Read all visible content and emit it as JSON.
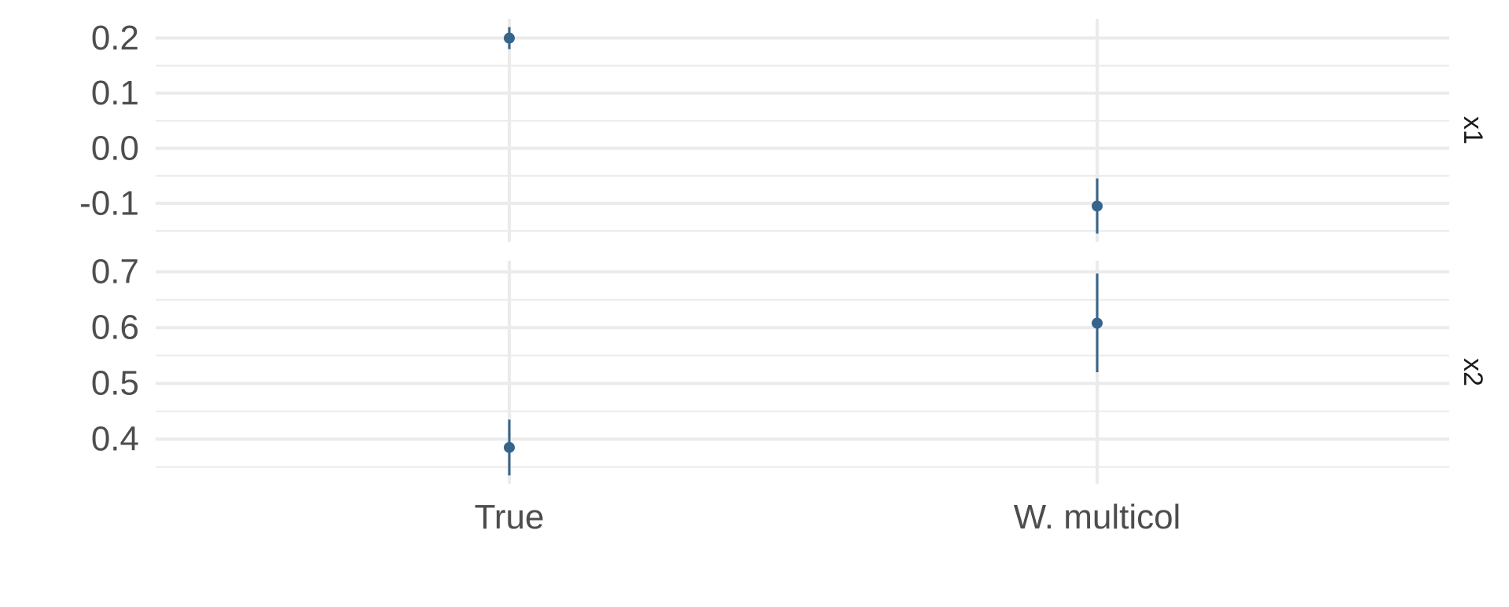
{
  "chart_data": {
    "type": "scatter",
    "subtype": "pointrange",
    "categories": [
      "True",
      "W. multicol"
    ],
    "facets": [
      {
        "label": "x1",
        "ylim": [
          -0.17,
          0.235
        ],
        "yticks": [
          -0.1,
          0.0,
          0.1,
          0.2
        ],
        "ytick_labels": [
          "-0.1",
          "0.0",
          "0.1",
          "0.2"
        ],
        "points": [
          {
            "category": "True",
            "y": 0.2,
            "ymin": 0.18,
            "ymax": 0.22
          },
          {
            "category": "W. multicol",
            "y": -0.105,
            "ymin": -0.155,
            "ymax": -0.055
          }
        ]
      },
      {
        "label": "x2",
        "ylim": [
          0.32,
          0.72
        ],
        "yticks": [
          0.4,
          0.5,
          0.6,
          0.7
        ],
        "ytick_labels": [
          "0.4",
          "0.5",
          "0.6",
          "0.7"
        ],
        "points": [
          {
            "category": "True",
            "y": 0.385,
            "ymin": 0.335,
            "ymax": 0.435
          },
          {
            "category": "W. multicol",
            "y": 0.608,
            "ymin": 0.52,
            "ymax": 0.697
          }
        ]
      }
    ],
    "color": "#36648b",
    "grid_color": "#ebebeb",
    "grid": true,
    "legend": "none",
    "title": "",
    "xlabel": "",
    "ylabel": ""
  }
}
